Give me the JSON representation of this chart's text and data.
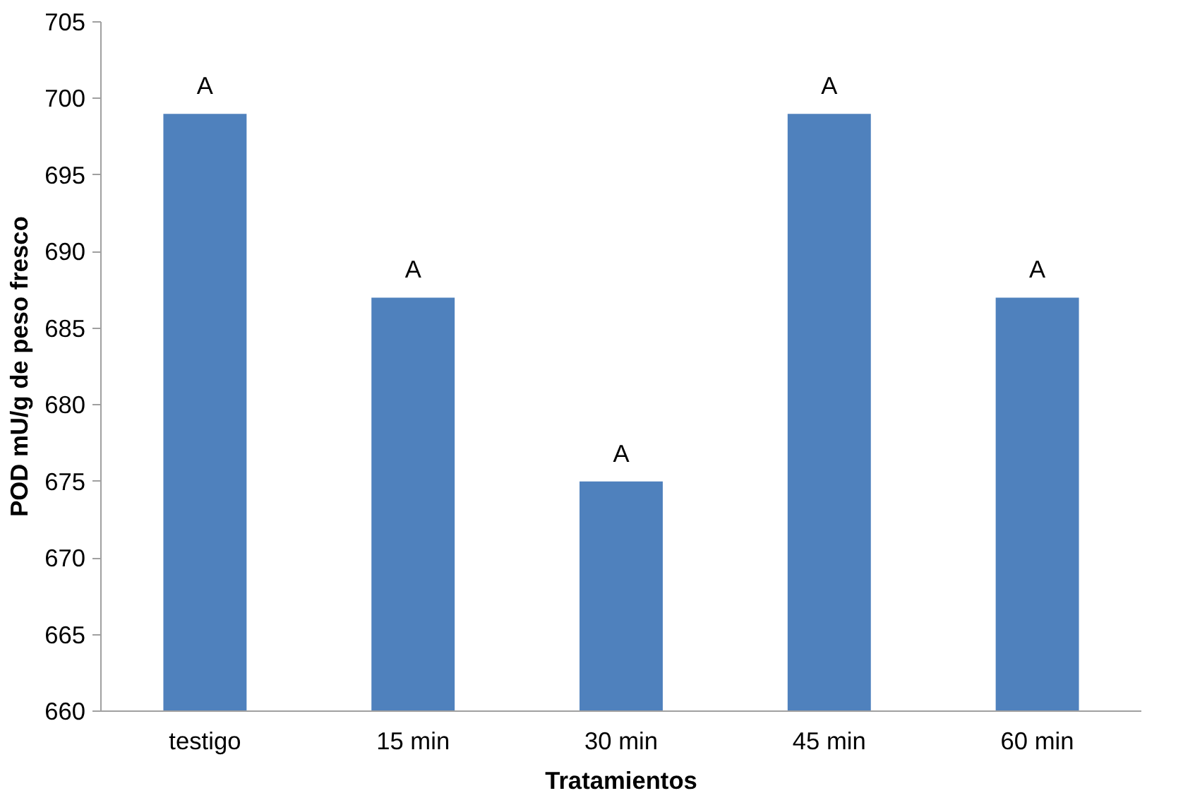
{
  "chart_data": {
    "type": "bar",
    "xlabel": "Tratamientos",
    "ylabel": "POD mU/g de peso fresco",
    "categories": [
      "testigo",
      "15 min",
      "30 min",
      "45 min",
      "60 min"
    ],
    "values": [
      699,
      687,
      675,
      699,
      687
    ],
    "color": "#4f81bd",
    "ylim": [
      660,
      705
    ],
    "yticks": [
      660,
      665,
      670,
      675,
      680,
      685,
      690,
      695,
      700,
      705
    ],
    "grid": false,
    "annotations": [
      {
        "text": "A",
        "x": "testigo",
        "y": 699
      },
      {
        "text": "A",
        "x": "15 min",
        "y": 687
      },
      {
        "text": "A",
        "x": "30 min",
        "y": 675
      },
      {
        "text": "A",
        "x": "45 min",
        "y": 699
      },
      {
        "text": "A",
        "x": "60 min",
        "y": 687
      }
    ]
  }
}
